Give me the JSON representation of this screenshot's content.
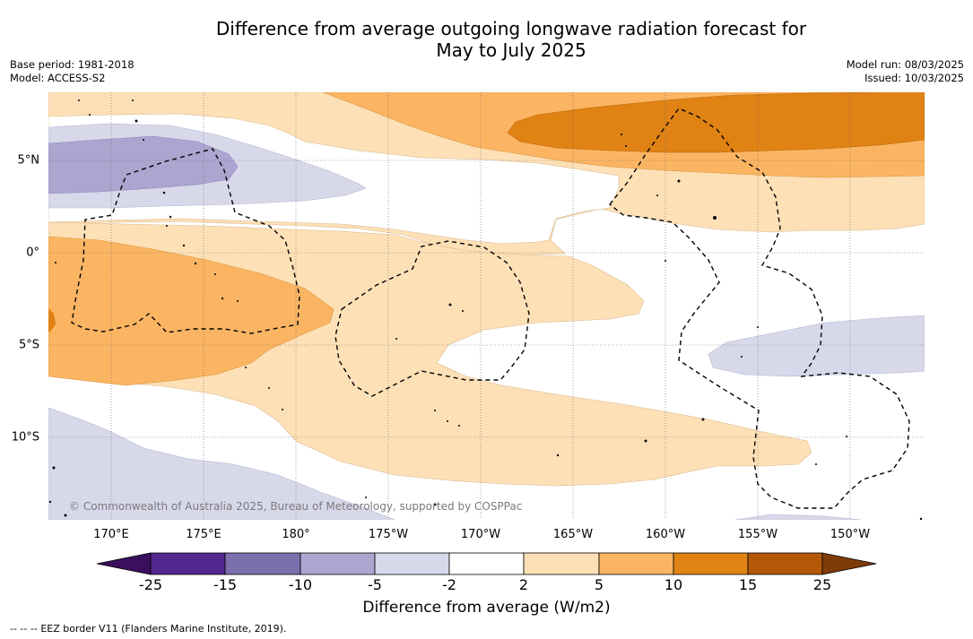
{
  "header": {
    "title_line1": "Difference from average outgoing longwave radiation forecast for",
    "title_line2": "May to July 2025",
    "base_period": "Base period: 1981-2018",
    "model": "Model: ACCESS-S2",
    "model_run": "Model run: 08/03/2025",
    "issued": "Issued: 10/03/2025"
  },
  "map": {
    "lon_labels": [
      "170°E",
      "175°E",
      "180°",
      "175°W",
      "170°W",
      "165°W",
      "160°W",
      "155°W",
      "150°W"
    ],
    "lat_labels": [
      "5°N",
      "0°",
      "5°S",
      "10°S"
    ],
    "copyright": "© Commonwealth of Australia 2025, Bureau of Meteorology, supported by COSPPac"
  },
  "colorbar": {
    "title": "Difference from average (W/m2)",
    "ticks": [
      "-25",
      "-15",
      "-10",
      "-5",
      "-2",
      "2",
      "5",
      "10",
      "15",
      "25"
    ],
    "colors": [
      "#3b0f5e",
      "#54278f",
      "#7b6fae",
      "#ada4d0",
      "#d8d8eb",
      "#ffffff",
      "#fde0b6",
      "#fbb562",
      "#e08214",
      "#b35806",
      "#7f3b08"
    ]
  },
  "legend": {
    "eez_marker": "--  --  --",
    "eez_text": "EEZ border V11 (Flanders Marine Institute, 2019)."
  }
}
